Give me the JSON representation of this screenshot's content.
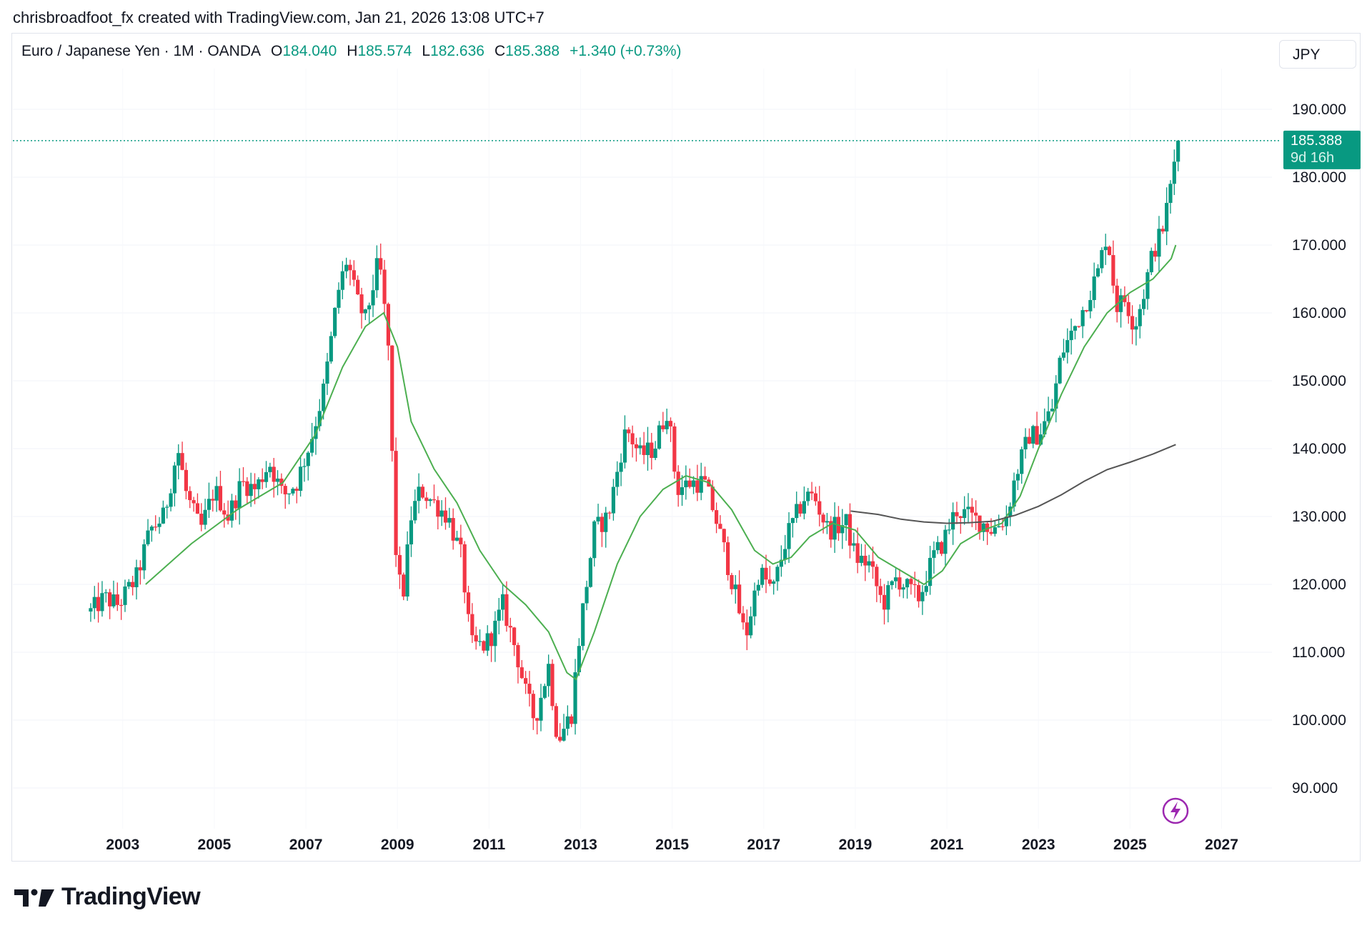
{
  "attribution": "chrisbroadfoot_fx created with TradingView.com, Jan 21, 2026 13:08 UTC+7",
  "header": {
    "symbol": "Euro / Japanese Yen · 1M · OANDA",
    "open_label": "O",
    "open": "184.040",
    "high_label": "H",
    "high": "185.574",
    "low_label": "L",
    "low": "182.636",
    "close_label": "C",
    "close": "185.388",
    "change": "+1.340 (+0.73%)"
  },
  "currency_button": "JPY",
  "price_tag": {
    "price": "185.388",
    "countdown": "9d 16h"
  },
  "brand": "TradingView",
  "colors": {
    "up": "#089981",
    "down": "#f23645",
    "ma_fast": "#4caf50",
    "ma_slow": "#555555"
  },
  "chart_data": {
    "type": "candlestick",
    "title": "Euro / Japanese Yen · 1M · OANDA",
    "ylim": [
      84,
      196
    ],
    "xlim": [
      2000.6,
      2028.1
    ],
    "y_ticks": [
      "90.000",
      "100.000",
      "110.000",
      "120.000",
      "130.000",
      "140.000",
      "150.000",
      "160.000",
      "170.000",
      "180.000",
      "190.000"
    ],
    "x_ticks": [
      "2003",
      "2005",
      "2007",
      "2009",
      "2011",
      "2013",
      "2015",
      "2017",
      "2019",
      "2021",
      "2023",
      "2025",
      "2027"
    ],
    "last_price": 185.388,
    "path": [
      [
        2002.3,
        116
      ],
      [
        2002.6,
        118
      ],
      [
        2002.9,
        117
      ],
      [
        2003.3,
        121
      ],
      [
        2003.6,
        128
      ],
      [
        2003.9,
        130
      ],
      [
        2004.2,
        140
      ],
      [
        2004.4,
        133
      ],
      [
        2004.7,
        128
      ],
      [
        2005.0,
        134
      ],
      [
        2005.3,
        130
      ],
      [
        2005.6,
        135
      ],
      [
        2005.9,
        134
      ],
      [
        2006.2,
        138
      ],
      [
        2006.5,
        133
      ],
      [
        2006.8,
        135
      ],
      [
        2007.1,
        141
      ],
      [
        2007.4,
        149
      ],
      [
        2007.7,
        163
      ],
      [
        2007.9,
        168
      ],
      [
        2008.1,
        162
      ],
      [
        2008.3,
        159
      ],
      [
        2008.6,
        168
      ],
      [
        2008.8,
        155
      ],
      [
        2008.95,
        126
      ],
      [
        2009.1,
        117
      ],
      [
        2009.3,
        130
      ],
      [
        2009.5,
        134
      ],
      [
        2009.8,
        132
      ],
      [
        2010.1,
        130
      ],
      [
        2010.4,
        124
      ],
      [
        2010.6,
        111
      ],
      [
        2010.9,
        111
      ],
      [
        2011.1,
        113
      ],
      [
        2011.3,
        117
      ],
      [
        2011.6,
        110
      ],
      [
        2011.8,
        104
      ],
      [
        2012.0,
        100
      ],
      [
        2012.3,
        108
      ],
      [
        2012.5,
        97
      ],
      [
        2012.8,
        101
      ],
      [
        2013.0,
        114
      ],
      [
        2013.3,
        128
      ],
      [
        2013.6,
        130
      ],
      [
        2013.9,
        140
      ],
      [
        2014.0,
        143
      ],
      [
        2014.3,
        139
      ],
      [
        2014.6,
        140
      ],
      [
        2014.9,
        146
      ],
      [
        2015.1,
        134
      ],
      [
        2015.4,
        135
      ],
      [
        2015.7,
        135
      ],
      [
        2015.9,
        131
      ],
      [
        2016.1,
        126
      ],
      [
        2016.4,
        118
      ],
      [
        2016.6,
        112
      ],
      [
        2016.9,
        122
      ],
      [
        2017.2,
        119
      ],
      [
        2017.5,
        127
      ],
      [
        2017.9,
        133
      ],
      [
        2018.1,
        133
      ],
      [
        2018.4,
        128
      ],
      [
        2018.8,
        129
      ],
      [
        2019.0,
        124
      ],
      [
        2019.3,
        123
      ],
      [
        2019.6,
        117
      ],
      [
        2019.9,
        121
      ],
      [
        2020.2,
        119
      ],
      [
        2020.4,
        118
      ],
      [
        2020.7,
        124
      ],
      [
        2020.9,
        126
      ],
      [
        2021.2,
        131
      ],
      [
        2021.5,
        130
      ],
      [
        2021.8,
        129
      ],
      [
        2022.0,
        128
      ],
      [
        2022.3,
        130
      ],
      [
        2022.5,
        136
      ],
      [
        2022.8,
        142
      ],
      [
        2023.0,
        142
      ],
      [
        2023.3,
        146
      ],
      [
        2023.5,
        154
      ],
      [
        2023.8,
        158
      ],
      [
        2024.0,
        161
      ],
      [
        2024.3,
        166
      ],
      [
        2024.5,
        172
      ],
      [
        2024.7,
        161
      ],
      [
        2024.9,
        162
      ],
      [
        2025.1,
        158
      ],
      [
        2025.3,
        163
      ],
      [
        2025.5,
        169
      ],
      [
        2025.7,
        172
      ],
      [
        2025.85,
        177
      ],
      [
        2026.0,
        184
      ],
      [
        2026.05,
        185.4
      ]
    ],
    "series": [
      {
        "name": "EUR/JPY monthly OHLC (close trace)",
        "kind": "candles"
      },
      {
        "name": "Moving average (fast)",
        "points": [
          [
            2003.5,
            120
          ],
          [
            2004.5,
            126
          ],
          [
            2005.5,
            131
          ],
          [
            2006.5,
            135
          ],
          [
            2007.2,
            142
          ],
          [
            2007.8,
            152
          ],
          [
            2008.3,
            158
          ],
          [
            2008.7,
            160
          ],
          [
            2009.0,
            155
          ],
          [
            2009.3,
            144
          ],
          [
            2009.8,
            137
          ],
          [
            2010.3,
            132
          ],
          [
            2010.8,
            125
          ],
          [
            2011.3,
            120
          ],
          [
            2011.8,
            117
          ],
          [
            2012.3,
            113
          ],
          [
            2012.7,
            107
          ],
          [
            2012.9,
            106
          ],
          [
            2013.3,
            113
          ],
          [
            2013.8,
            123
          ],
          [
            2014.3,
            130
          ],
          [
            2014.8,
            134
          ],
          [
            2015.3,
            136
          ],
          [
            2015.8,
            135
          ],
          [
            2016.3,
            131
          ],
          [
            2016.8,
            125
          ],
          [
            2017.2,
            123
          ],
          [
            2017.6,
            124
          ],
          [
            2018.0,
            127
          ],
          [
            2018.5,
            129
          ],
          [
            2019.0,
            128
          ],
          [
            2019.5,
            124
          ],
          [
            2020.0,
            122
          ],
          [
            2020.5,
            120
          ],
          [
            2020.9,
            122
          ],
          [
            2021.3,
            126
          ],
          [
            2021.8,
            128
          ],
          [
            2022.2,
            129
          ],
          [
            2022.6,
            133
          ],
          [
            2023.0,
            140
          ],
          [
            2023.5,
            148
          ],
          [
            2024.0,
            155
          ],
          [
            2024.5,
            160
          ],
          [
            2025.0,
            163
          ],
          [
            2025.5,
            165
          ],
          [
            2025.9,
            168
          ],
          [
            2026.0,
            170
          ]
        ]
      },
      {
        "name": "Moving average (slow)",
        "points": [
          [
            2018.9,
            130.8
          ],
          [
            2019.5,
            130.3
          ],
          [
            2020.0,
            129.6
          ],
          [
            2020.5,
            129.2
          ],
          [
            2021.0,
            129.0
          ],
          [
            2021.5,
            129.1
          ],
          [
            2022.0,
            129.3
          ],
          [
            2022.5,
            130.2
          ],
          [
            2023.0,
            131.5
          ],
          [
            2023.5,
            133.2
          ],
          [
            2024.0,
            135.2
          ],
          [
            2024.5,
            136.9
          ],
          [
            2025.0,
            138.0
          ],
          [
            2025.5,
            139.2
          ],
          [
            2026.0,
            140.6
          ]
        ]
      }
    ]
  }
}
